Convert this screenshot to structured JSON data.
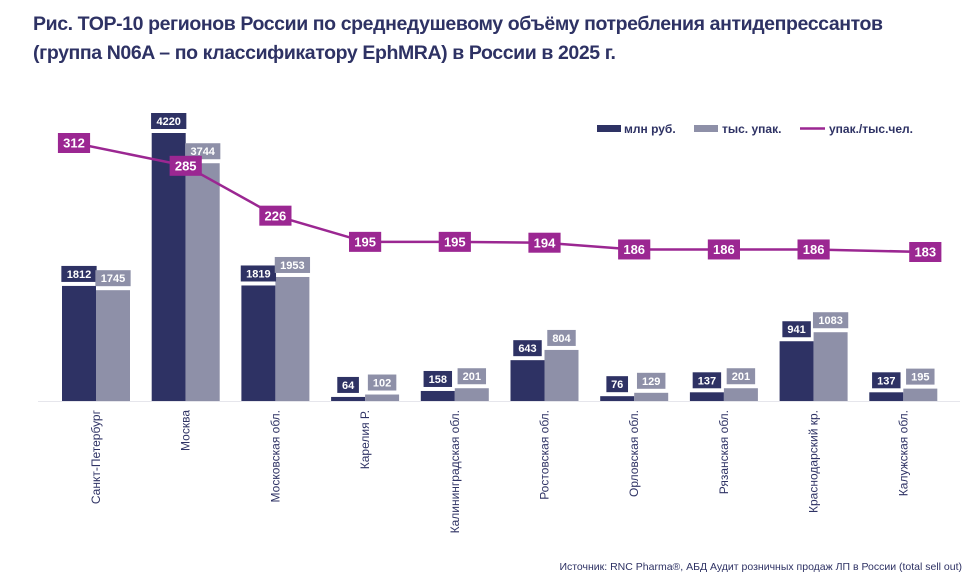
{
  "chart_data": {
    "type": "bar",
    "title": "Рис. ТОР-10 регионов России по среднедушевому объёму потребления антидепрессантов (группа N06A – по классификатору EphMRA) в России в 2025 г.",
    "xlabel": "",
    "ylabel": "",
    "categories": [
      "Санкт-Петербург",
      "Москва",
      "Московская обл.",
      "Карелия Р.",
      "Калининградская обл.",
      "Ростовская обл.",
      "Орловская обл.",
      "Рязанская обл.",
      "Краснодарский кр.",
      "Калужская обл."
    ],
    "series": [
      {
        "name": "млн руб.",
        "type": "bar",
        "color": "#2e3264",
        "values": [
          1812,
          4220,
          1819,
          64,
          158,
          643,
          76,
          137,
          941,
          137
        ]
      },
      {
        "name": "тыс. упак.",
        "type": "bar",
        "color": "#8e90a8",
        "values": [
          1745,
          3744,
          1953,
          102,
          201,
          804,
          129,
          201,
          1083,
          195
        ]
      },
      {
        "name": "упак./тыс.чел.",
        "type": "line",
        "color": "#9b2792",
        "values": [
          312,
          285,
          226,
          195,
          195,
          194,
          186,
          186,
          186,
          183
        ]
      }
    ],
    "bar_axis_range": [
      0,
      4220
    ],
    "line_axis_range": [
      183,
      312
    ],
    "grid": false,
    "legend_position": "top-right",
    "source": "Источник: RNC Pharma®, АБД Аудит розничных продаж ЛП в России (total sell out)"
  }
}
